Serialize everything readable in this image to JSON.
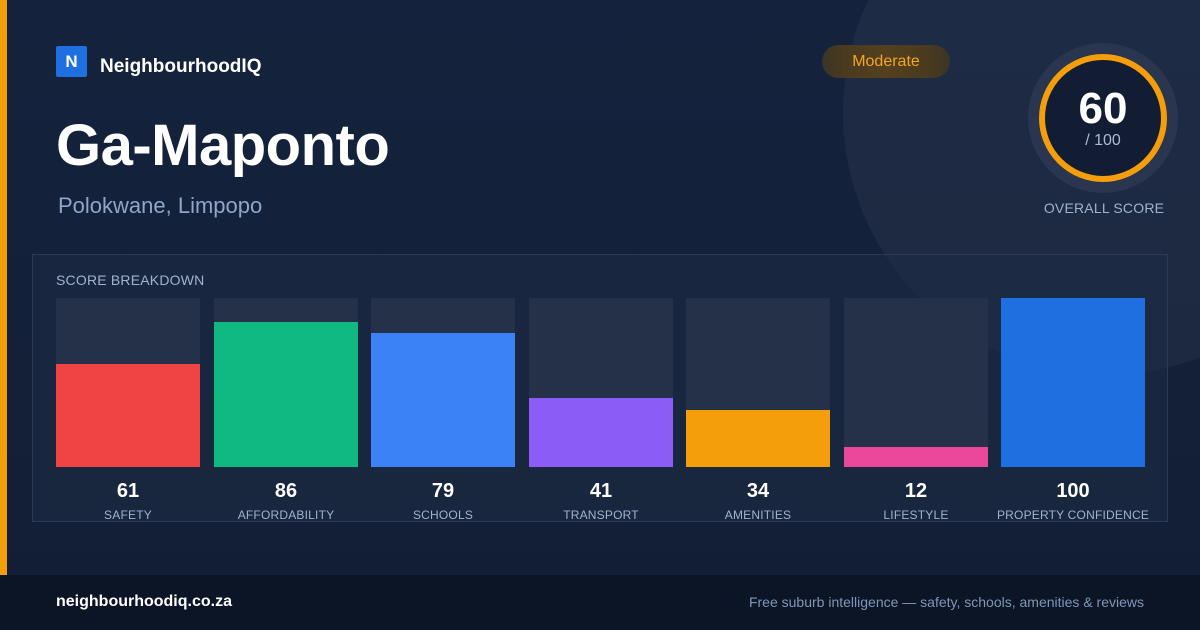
{
  "brand": {
    "logo_letter": "N",
    "name": "NeighbourhoodIQ"
  },
  "suburb": {
    "name": "Ga-Maponto",
    "location": "Polokwane, Limpopo"
  },
  "rating": {
    "label": "Moderate",
    "color": "#f5a524"
  },
  "overall": {
    "score": "60",
    "max": "/ 100",
    "caption": "OVERALL SCORE",
    "value": 60,
    "ring_color": "#f59e0b"
  },
  "breakdown": {
    "title": "SCORE BREAKDOWN",
    "items": [
      {
        "label": "SAFETY",
        "value": 61,
        "display": "61",
        "color": "#ef4444"
      },
      {
        "label": "AFFORDABILITY",
        "value": 86,
        "display": "86",
        "color": "#10b981"
      },
      {
        "label": "SCHOOLS",
        "value": 79,
        "display": "79",
        "color": "#3b82f6"
      },
      {
        "label": "TRANSPORT",
        "value": 41,
        "display": "41",
        "color": "#8b5cf6"
      },
      {
        "label": "AMENITIES",
        "value": 34,
        "display": "34",
        "color": "#f59e0b"
      },
      {
        "label": "LIFESTYLE",
        "value": 12,
        "display": "12",
        "color": "#ec4899"
      },
      {
        "label": "PROPERTY CONFIDENCE",
        "value": 100,
        "display": "100",
        "color": "#1f6fe0"
      }
    ]
  },
  "footer": {
    "site": "neighbourhoodiq.co.za",
    "tagline": "Free suburb intelligence — safety, schools, amenities & reviews"
  }
}
